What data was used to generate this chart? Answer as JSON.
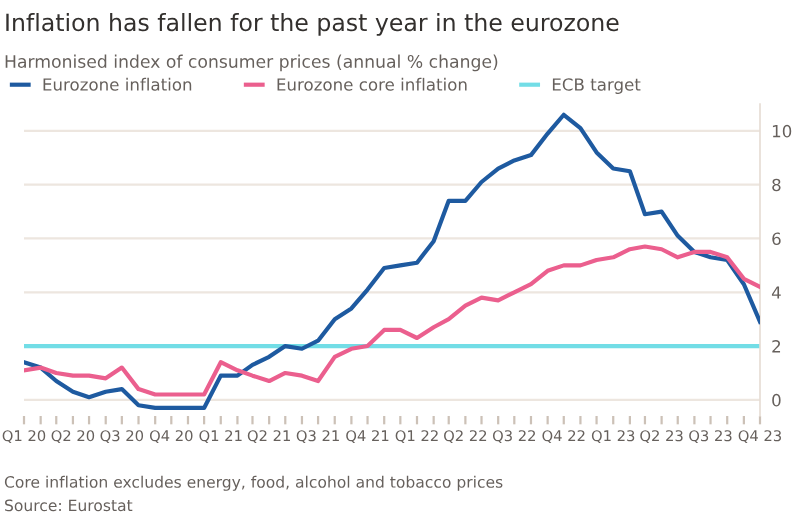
{
  "chart_data": {
    "type": "line",
    "title": "Inflation has fallen for the past year in the eurozone",
    "subtitle": "Harmonised index of consumer prices (annual % change)",
    "x": [
      "2020-01",
      "2020-02",
      "2020-03",
      "2020-04",
      "2020-05",
      "2020-06",
      "2020-07",
      "2020-08",
      "2020-09",
      "2020-10",
      "2020-11",
      "2020-12",
      "2021-01",
      "2021-02",
      "2021-03",
      "2021-04",
      "2021-05",
      "2021-06",
      "2021-07",
      "2021-08",
      "2021-09",
      "2021-10",
      "2021-11",
      "2021-12",
      "2022-01",
      "2022-02",
      "2022-03",
      "2022-04",
      "2022-05",
      "2022-06",
      "2022-07",
      "2022-08",
      "2022-09",
      "2022-10",
      "2022-11",
      "2022-12",
      "2023-01",
      "2023-02",
      "2023-03",
      "2023-04",
      "2023-05",
      "2023-06",
      "2023-07",
      "2023-08",
      "2023-09",
      "2023-10"
    ],
    "series": [
      {
        "name": "Eurozone inflation",
        "color": "#1e5aa0",
        "values": [
          1.4,
          1.2,
          0.7,
          0.3,
          0.1,
          0.3,
          0.4,
          -0.2,
          -0.3,
          -0.3,
          -0.3,
          -0.3,
          0.9,
          0.9,
          1.3,
          1.6,
          2.0,
          1.9,
          2.2,
          3.0,
          3.4,
          4.1,
          4.9,
          5.0,
          5.1,
          5.9,
          7.4,
          7.4,
          8.1,
          8.6,
          8.9,
          9.1,
          9.9,
          10.6,
          10.1,
          9.2,
          8.6,
          8.5,
          6.9,
          7.0,
          6.1,
          5.5,
          5.3,
          5.2,
          4.3,
          2.9
        ]
      },
      {
        "name": "Eurozone core inflation",
        "color": "#eb5f8e",
        "values": [
          1.1,
          1.2,
          1.0,
          0.9,
          0.9,
          0.8,
          1.2,
          0.4,
          0.2,
          0.2,
          0.2,
          0.2,
          1.4,
          1.1,
          0.9,
          0.7,
          1.0,
          0.9,
          0.7,
          1.6,
          1.9,
          2.0,
          2.6,
          2.6,
          2.3,
          2.7,
          3.0,
          3.5,
          3.8,
          3.7,
          4.0,
          4.3,
          4.8,
          5.0,
          5.0,
          5.2,
          5.3,
          5.6,
          5.7,
          5.6,
          5.3,
          5.5,
          5.5,
          5.3,
          4.5,
          4.2
        ]
      }
    ],
    "ref_lines": [
      {
        "axis": "y",
        "value": 2,
        "label": "ECB target",
        "color": "#72dde6"
      }
    ],
    "xlim": [
      "2020-01",
      "2023-10"
    ],
    "xticks": [
      {
        "value": "2020-01",
        "label": "Q1 20"
      },
      {
        "value": "2020-02",
        "label": null
      },
      {
        "value": "2020-03",
        "label": null
      },
      {
        "value": "2020-04",
        "label": "Q2 20"
      },
      {
        "value": "2020-05",
        "label": null
      },
      {
        "value": "2020-06",
        "label": null
      },
      {
        "value": "2020-07",
        "label": "Q3 20"
      },
      {
        "value": "2020-08",
        "label": null
      },
      {
        "value": "2020-09",
        "label": null
      },
      {
        "value": "2020-10",
        "label": "Q4 20"
      },
      {
        "value": "2020-11",
        "label": null
      },
      {
        "value": "2020-12",
        "label": null
      },
      {
        "value": "2021-01",
        "label": "Q1 21"
      },
      {
        "value": "2021-02",
        "label": null
      },
      {
        "value": "2021-03",
        "label": null
      },
      {
        "value": "2021-04",
        "label": "Q2 21"
      },
      {
        "value": "2021-05",
        "label": null
      },
      {
        "value": "2021-06",
        "label": null
      },
      {
        "value": "2021-07",
        "label": "Q3 21"
      },
      {
        "value": "2021-08",
        "label": null
      },
      {
        "value": "2021-09",
        "label": null
      },
      {
        "value": "2021-10",
        "label": "Q4 21"
      },
      {
        "value": "2021-11",
        "label": null
      },
      {
        "value": "2021-12",
        "label": null
      },
      {
        "value": "2022-01",
        "label": "Q1 22"
      },
      {
        "value": "2022-02",
        "label": null
      },
      {
        "value": "2022-03",
        "label": null
      },
      {
        "value": "2022-04",
        "label": "Q2 22"
      },
      {
        "value": "2022-05",
        "label": null
      },
      {
        "value": "2022-06",
        "label": null
      },
      {
        "value": "2022-07",
        "label": "Q3 22"
      },
      {
        "value": "2022-08",
        "label": null
      },
      {
        "value": "2022-09",
        "label": null
      },
      {
        "value": "2022-10",
        "label": "Q4 22"
      },
      {
        "value": "2022-11",
        "label": null
      },
      {
        "value": "2022-12",
        "label": null
      },
      {
        "value": "2023-01",
        "label": "Q1 23"
      },
      {
        "value": "2023-02",
        "label": null
      },
      {
        "value": "2023-03",
        "label": null
      },
      {
        "value": "2023-04",
        "label": "Q2 23"
      },
      {
        "value": "2023-05",
        "label": null
      },
      {
        "value": "2023-06",
        "label": null
      },
      {
        "value": "2023-07",
        "label": "Q3 23"
      },
      {
        "value": "2023-08",
        "label": null
      },
      {
        "value": "2023-09",
        "label": null
      },
      {
        "value": "2023-10",
        "label": "Q4 23"
      }
    ],
    "ylim": [
      -0.6,
      11
    ],
    "yticks": [
      0,
      2,
      4,
      6,
      8,
      10
    ],
    "grid": "y",
    "legend": "top left",
    "annotations": [
      "Core inflation excludes energy, food, alcohol and tobacco prices",
      "Source: Eurostat"
    ]
  }
}
